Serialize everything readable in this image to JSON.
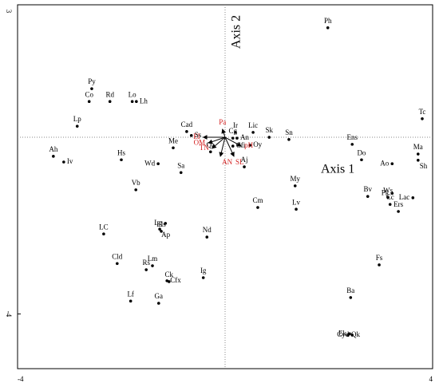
{
  "chart_data": {
    "type": "scatter",
    "x_axis_label": "Axis 1",
    "y_axis_label": "Axis 2",
    "xlim": [
      -4,
      4
    ],
    "ylim": [
      -5.24,
      3
    ],
    "xticks": [
      -4,
      4
    ],
    "yticks": [
      3,
      -4
    ],
    "reference_lines": true,
    "points": {
      "color": "#000000",
      "labels": [
        "Ph",
        "Py",
        "Co",
        "Rd",
        "Lo",
        "Lh",
        "Lp",
        "Tc",
        "Cad",
        "Ss",
        "Ir",
        "Cg",
        "Lic",
        "An",
        "Oy",
        "Cfi",
        "Sk",
        "Sn",
        "Me",
        "Ens",
        "Ma",
        "Ah",
        "Iv",
        "Hs",
        "Wd",
        "Do",
        "Ao",
        "Sh",
        "Sa",
        "Aj",
        "My",
        "Vb",
        "Bv",
        "Pk",
        "Ws",
        "Lac",
        "Cc",
        "Ers",
        "Cm",
        "Lv",
        "LC",
        "Lg",
        "Ap",
        "Els",
        "Nd",
        "Fs",
        "Cld",
        "Lm",
        "Rs",
        "Ig",
        "Cfx",
        "Ck",
        "Ba",
        "Lf",
        "Ga",
        "Ek",
        "Qk",
        "Cyd",
        "Qa"
      ],
      "x": [
        1.98,
        -2.57,
        -2.62,
        -2.22,
        -1.79,
        -1.71,
        -2.85,
        3.8,
        -0.74,
        -0.65,
        0.2,
        0.15,
        0.54,
        0.23,
        0.48,
        0.15,
        0.85,
        1.23,
        -1.0,
        2.45,
        3.72,
        -3.31,
        -3.11,
        -2.0,
        -1.29,
        2.63,
        3.22,
        3.72,
        -0.85,
        0.37,
        1.35,
        -1.72,
        2.75,
        3.22,
        3.14,
        3.62,
        3.18,
        3.34,
        0.63,
        1.37,
        -2.34,
        -1.15,
        -1.26,
        -1.23,
        -0.35,
        2.97,
        -2.08,
        -1.4,
        -1.52,
        -0.42,
        -1.12,
        -1.08,
        2.42,
        -1.82,
        -1.28,
        2.4,
        2.37,
        2.45,
        -0.28
      ],
      "y": [
        2.48,
        1.1,
        0.81,
        0.81,
        0.81,
        0.81,
        0.25,
        0.42,
        0.13,
        0.04,
        0.11,
        -0.02,
        0.11,
        -0.02,
        -0.18,
        -0.2,
        0.0,
        -0.05,
        -0.24,
        -0.16,
        -0.38,
        -0.43,
        -0.56,
        -0.51,
        -0.6,
        -0.51,
        -0.6,
        -0.52,
        -0.8,
        -0.67,
        -1.1,
        -1.19,
        -1.34,
        -1.27,
        -1.36,
        -1.37,
        -1.52,
        -1.68,
        -1.59,
        -1.63,
        -2.19,
        -1.95,
        -2.08,
        -2.13,
        -2.26,
        -2.89,
        -2.86,
        -2.91,
        -3.0,
        -3.18,
        -3.25,
        -3.27,
        -3.63,
        -3.71,
        -3.76,
        -4.45,
        -4.48,
        -4.48,
        -0.33
      ]
    },
    "vectors": {
      "color": "#d42020",
      "labels": [
        "Pa",
        "EI",
        "OM",
        "TN",
        "AN",
        "SL",
        "pH"
      ],
      "x": [
        -0.05,
        -0.42,
        -0.32,
        -0.25,
        -0.09,
        0.17,
        0.31
      ],
      "y": [
        0.18,
        0.0,
        -0.13,
        -0.25,
        -0.43,
        -0.43,
        -0.2
      ]
    }
  }
}
